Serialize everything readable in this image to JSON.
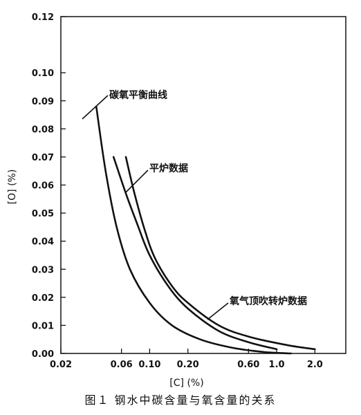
{
  "chart_data": {
    "type": "line",
    "x_scale": "log",
    "xlim": [
      0.02,
      3.5
    ],
    "ylim": [
      0.0,
      0.12
    ],
    "xlabel": "[C] (%)",
    "ylabel": "[O] (%)",
    "x_ticks": [
      {
        "value": 0.02,
        "label": "0.02"
      },
      {
        "value": 0.06,
        "label": "0.06"
      },
      {
        "value": 0.1,
        "label": "0.10"
      },
      {
        "value": 0.2,
        "label": "0.20"
      },
      {
        "value": 0.6,
        "label": "0.60"
      },
      {
        "value": 1.0,
        "label": "1.0"
      },
      {
        "value": 2.0,
        "label": "2.0"
      }
    ],
    "y_ticks": [
      {
        "value": 0.0,
        "label": "0.00"
      },
      {
        "value": 0.01,
        "label": "0.01"
      },
      {
        "value": 0.02,
        "label": "0.02"
      },
      {
        "value": 0.03,
        "label": "0.03"
      },
      {
        "value": 0.04,
        "label": "0.04"
      },
      {
        "value": 0.05,
        "label": "0.05"
      },
      {
        "value": 0.06,
        "label": "0.06"
      },
      {
        "value": 0.07,
        "label": "0.07"
      },
      {
        "value": 0.08,
        "label": "0.08"
      },
      {
        "value": 0.09,
        "label": "0.09"
      },
      {
        "value": 0.1,
        "label": "0.10"
      },
      {
        "value": 0.12,
        "label": "0.12"
      }
    ],
    "series": [
      {
        "name": "碳氧平衡曲线",
        "points": [
          [
            0.038,
            0.088
          ],
          [
            0.045,
            0.065
          ],
          [
            0.055,
            0.045
          ],
          [
            0.07,
            0.03
          ],
          [
            0.1,
            0.018
          ],
          [
            0.15,
            0.01
          ],
          [
            0.25,
            0.005
          ],
          [
            0.45,
            0.002
          ],
          [
            0.8,
            0.0005
          ],
          [
            1.3,
            0.0
          ]
        ]
      },
      {
        "name": "平炉数据",
        "points": [
          [
            0.052,
            0.07
          ],
          [
            0.065,
            0.057
          ],
          [
            0.08,
            0.046
          ],
          [
            0.1,
            0.035
          ],
          [
            0.14,
            0.024
          ],
          [
            0.2,
            0.016
          ],
          [
            0.35,
            0.008
          ],
          [
            0.6,
            0.004
          ],
          [
            1.0,
            0.0015
          ]
        ]
      },
      {
        "name": "氧气顶吹转炉数据",
        "points": [
          [
            0.065,
            0.07
          ],
          [
            0.075,
            0.058
          ],
          [
            0.09,
            0.045
          ],
          [
            0.11,
            0.034
          ],
          [
            0.15,
            0.024
          ],
          [
            0.2,
            0.018
          ],
          [
            0.35,
            0.01
          ],
          [
            0.6,
            0.006
          ],
          [
            1.2,
            0.003
          ],
          [
            2.0,
            0.0015
          ]
        ]
      }
    ],
    "annotations": [
      {
        "text": "碳氧平衡曲线",
        "series": 0
      },
      {
        "text": "平炉数据",
        "series": 1
      },
      {
        "text": "氧气顶吹转炉数据",
        "series": 2
      }
    ]
  },
  "caption": "图１ 钢水中碳含量与氧含量的关系"
}
